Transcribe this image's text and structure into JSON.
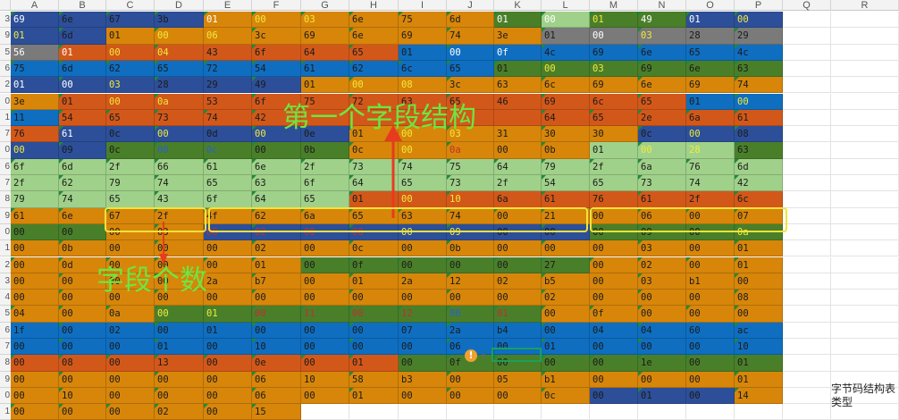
{
  "columns": [
    "A",
    "B",
    "C",
    "D",
    "E",
    "F",
    "G",
    "H",
    "I",
    "J",
    "K",
    "L",
    "M",
    "N",
    "O",
    "P",
    "Q",
    "R"
  ],
  "row_numbers": [
    "3",
    "9",
    "5",
    "6",
    "2",
    "0",
    "1",
    "7",
    "0",
    "6",
    "7",
    "8",
    "9",
    "0",
    "1",
    "2",
    "3",
    "4",
    "5",
    "6",
    "7",
    "8",
    "9",
    "0",
    "1",
    "2"
  ],
  "colors": {
    "B": "#2d4f99",
    "O": "#d7860a",
    "R": "#d2581a",
    "G": "#4a7f2a",
    "L": "#a0d18a",
    "S": "#0f6ec0",
    "Y": "#7a7a7a"
  },
  "grid_rows": [
    {
      "cells": [
        "69",
        "6e",
        "67",
        "3b",
        "01",
        "00",
        "03",
        "6e",
        "75",
        "6d",
        "01",
        "00",
        "01",
        "49",
        "01",
        "00"
      ],
      "bg": [
        "B",
        "B",
        "B",
        "B",
        "O",
        "O",
        "O",
        "O",
        "O",
        "O",
        "G",
        "L",
        "G",
        "G",
        "B",
        "B"
      ],
      "fg": [
        "w",
        "k",
        "k",
        "k",
        "w",
        "y",
        "y",
        "k",
        "k",
        "k",
        "w",
        "w",
        "y",
        "w",
        "w",
        "y"
      ]
    },
    {
      "cells": [
        "01",
        "6d",
        "01",
        "00",
        "06",
        "3c",
        "69",
        "6e",
        "69",
        "74",
        "3e",
        "01",
        "00",
        "03",
        "28",
        "29"
      ],
      "bg": [
        "B",
        "B",
        "O",
        "O",
        "O",
        "O",
        "O",
        "O",
        "O",
        "O",
        "O",
        "Y",
        "Y",
        "Y",
        "Y",
        "Y"
      ],
      "fg": [
        "y",
        "k",
        "k",
        "y",
        "y",
        "k",
        "k",
        "k",
        "k",
        "k",
        "k",
        "k",
        "w",
        "y",
        "k",
        "k"
      ]
    },
    {
      "cells": [
        "56",
        "01",
        "00",
        "04",
        "43",
        "6f",
        "64",
        "65",
        "01",
        "00",
        "0f",
        "4c",
        "69",
        "6e",
        "65",
        "4c"
      ],
      "bg": [
        "Y",
        "R",
        "R",
        "R",
        "R",
        "R",
        "R",
        "R",
        "S",
        "S",
        "S",
        "S",
        "S",
        "S",
        "S",
        "S"
      ],
      "fg": [
        "w",
        "w",
        "y",
        "y",
        "k",
        "k",
        "k",
        "k",
        "k",
        "w",
        "w",
        "k",
        "k",
        "k",
        "k",
        "k"
      ]
    },
    {
      "cells": [
        "75",
        "6d",
        "62",
        "65",
        "72",
        "54",
        "61",
        "62",
        "6c",
        "65",
        "01",
        "00",
        "03",
        "69",
        "6e",
        "63"
      ],
      "bg": [
        "S",
        "S",
        "S",
        "S",
        "S",
        "S",
        "S",
        "S",
        "S",
        "S",
        "G",
        "G",
        "G",
        "G",
        "G",
        "G"
      ],
      "fg": [
        "k",
        "k",
        "k",
        "k",
        "k",
        "k",
        "k",
        "k",
        "k",
        "k",
        "k",
        "y",
        "y",
        "k",
        "k",
        "k"
      ]
    },
    {
      "cells": [
        "01",
        "00",
        "03",
        "28",
        "29",
        "49",
        "01",
        "00",
        "08",
        "3c",
        "63",
        "6c",
        "69",
        "6e",
        "69",
        "74"
      ],
      "bg": [
        "B",
        "B",
        "B",
        "B",
        "B",
        "B",
        "O",
        "O",
        "O",
        "O",
        "O",
        "O",
        "O",
        "O",
        "O",
        "O"
      ],
      "fg": [
        "w",
        "w",
        "y",
        "k",
        "k",
        "k",
        "k",
        "y",
        "y",
        "k",
        "k",
        "k",
        "k",
        "k",
        "k",
        "k"
      ]
    },
    {
      "cells": [
        "3e",
        "01",
        "00",
        "0a",
        "53",
        "6f",
        "75",
        "72",
        "63",
        "65",
        "46",
        "69",
        "6c",
        "65",
        "01",
        "00"
      ],
      "bg": [
        "O",
        "R",
        "R",
        "R",
        "R",
        "R",
        "R",
        "R",
        "R",
        "R",
        "R",
        "R",
        "R",
        "R",
        "S",
        "S"
      ],
      "fg": [
        "k",
        "k",
        "y",
        "y",
        "k",
        "k",
        "k",
        "k",
        "k",
        "k",
        "k",
        "k",
        "k",
        "k",
        "k",
        "y"
      ]
    },
    {
      "cells": [
        "11",
        "54",
        "65",
        "73",
        "74",
        "42",
        "",
        "",
        "",
        "",
        "",
        "64",
        "65",
        "2e",
        "6a",
        "61"
      ],
      "bg": [
        "S",
        "R",
        "R",
        "R",
        "R",
        "R",
        "R",
        "R",
        "R",
        "R",
        "R",
        "R",
        "R",
        "R",
        "R",
        "R"
      ],
      "fg": [
        "k",
        "k",
        "k",
        "k",
        "k",
        "k",
        "k",
        "k",
        "k",
        "k",
        "k",
        "k",
        "k",
        "k",
        "k",
        "k"
      ]
    },
    {
      "cells": [
        "76",
        "61",
        "0c",
        "00",
        "0d",
        "00",
        "0e",
        "01",
        "00",
        "03",
        "31",
        "30",
        "30",
        "0c",
        "00",
        "08"
      ],
      "bg": [
        "R",
        "B",
        "B",
        "B",
        "B",
        "B",
        "B",
        "O",
        "O",
        "O",
        "O",
        "O",
        "O",
        "B",
        "B",
        "B"
      ],
      "fg": [
        "k",
        "w",
        "k",
        "y",
        "k",
        "y",
        "k",
        "k",
        "y",
        "y",
        "k",
        "k",
        "k",
        "k",
        "y",
        "k"
      ]
    },
    {
      "cells": [
        "00",
        "09",
        "0c",
        "00",
        "0c",
        "00",
        "0b",
        "0c",
        "00",
        "0a",
        "00",
        "0b",
        "01",
        "00",
        "28",
        "63"
      ],
      "bg": [
        "B",
        "B",
        "G",
        "G",
        "G",
        "G",
        "G",
        "O",
        "O",
        "O",
        "O",
        "O",
        "L",
        "L",
        "L",
        "G"
      ],
      "fg": [
        "y",
        "k",
        "k",
        "B",
        "B",
        "k",
        "k",
        "k",
        "y",
        "R",
        "k",
        "k",
        "k",
        "y",
        "y",
        "k"
      ]
    },
    {
      "cells": [
        "6f",
        "6d",
        "2f",
        "66",
        "61",
        "6e",
        "2f",
        "73",
        "74",
        "75",
        "64",
        "79",
        "2f",
        "6a",
        "76",
        "6d"
      ],
      "bg": [
        "L",
        "L",
        "L",
        "L",
        "L",
        "L",
        "L",
        "L",
        "L",
        "L",
        "L",
        "L",
        "L",
        "L",
        "L",
        "L"
      ],
      "fg": [
        "k",
        "k",
        "k",
        "k",
        "k",
        "k",
        "k",
        "k",
        "k",
        "k",
        "k",
        "k",
        "k",
        "k",
        "k",
        "k"
      ]
    },
    {
      "cells": [
        "2f",
        "62",
        "79",
        "74",
        "65",
        "63",
        "6f",
        "64",
        "65",
        "73",
        "2f",
        "54",
        "65",
        "73",
        "74",
        "42"
      ],
      "bg": [
        "L",
        "L",
        "L",
        "L",
        "L",
        "L",
        "L",
        "L",
        "L",
        "L",
        "L",
        "L",
        "L",
        "L",
        "L",
        "L"
      ],
      "fg": [
        "k",
        "k",
        "k",
        "k",
        "k",
        "k",
        "k",
        "k",
        "k",
        "k",
        "k",
        "k",
        "k",
        "k",
        "k",
        "k"
      ]
    },
    {
      "cells": [
        "79",
        "74",
        "65",
        "43",
        "6f",
        "64",
        "65",
        "01",
        "00",
        "10",
        "6a",
        "61",
        "76",
        "61",
        "2f",
        "6c"
      ],
      "bg": [
        "L",
        "L",
        "L",
        "L",
        "L",
        "L",
        "L",
        "R",
        "R",
        "R",
        "R",
        "R",
        "R",
        "R",
        "R",
        "R"
      ],
      "fg": [
        "k",
        "k",
        "k",
        "k",
        "k",
        "k",
        "k",
        "k",
        "y",
        "y",
        "k",
        "k",
        "k",
        "k",
        "k",
        "k"
      ]
    },
    {
      "cells": [
        "61",
        "6e",
        "67",
        "2f",
        "4f",
        "62",
        "6a",
        "65",
        "63",
        "74",
        "00",
        "21",
        "00",
        "06",
        "00",
        "07"
      ],
      "bg": [
        "O",
        "O",
        "O",
        "O",
        "O",
        "O",
        "O",
        "O",
        "O",
        "O",
        "O",
        "O",
        "O",
        "O",
        "O",
        "O"
      ],
      "fg": [
        "k",
        "k",
        "k",
        "k",
        "k",
        "k",
        "k",
        "k",
        "k",
        "k",
        "k",
        "k",
        "k",
        "k",
        "k",
        "k"
      ]
    },
    {
      "cells": [
        "00",
        "00",
        "00",
        "03",
        "00",
        "02",
        "00",
        "08",
        "00",
        "09",
        "00",
        "00",
        "00",
        "09",
        "00",
        "0a"
      ],
      "bg": [
        "G",
        "G",
        "O",
        "O",
        "B",
        "B",
        "B",
        "B",
        "B",
        "B",
        "B",
        "B",
        "G",
        "G",
        "G",
        "G"
      ],
      "fg": [
        "k",
        "k",
        "k",
        "k",
        "R",
        "R",
        "R",
        "R",
        "y",
        "y",
        "k",
        "k",
        "k",
        "k",
        "k",
        "y"
      ]
    },
    {
      "cells": [
        "00",
        "0b",
        "00",
        "00",
        "00",
        "02",
        "00",
        "0c",
        "00",
        "0b",
        "00",
        "00",
        "00",
        "03",
        "00",
        "01"
      ],
      "bg": [
        "O",
        "O",
        "O",
        "O",
        "O",
        "O",
        "O",
        "O",
        "O",
        "O",
        "O",
        "O",
        "O",
        "O",
        "O",
        "O"
      ],
      "fg": [
        "k",
        "k",
        "k",
        "k",
        "k",
        "k",
        "k",
        "k",
        "k",
        "k",
        "k",
        "k",
        "k",
        "k",
        "k",
        "k"
      ]
    },
    {
      "cells": [
        "00",
        "0d",
        "00",
        "00",
        "00",
        "01",
        "00",
        "0f",
        "00",
        "00",
        "00",
        "27",
        "00",
        "02",
        "00",
        "01"
      ],
      "bg": [
        "O",
        "O",
        "O",
        "O",
        "O",
        "O",
        "G",
        "G",
        "G",
        "G",
        "G",
        "G",
        "O",
        "O",
        "O",
        "O"
      ],
      "fg": [
        "k",
        "k",
        "k",
        "k",
        "k",
        "k",
        "k",
        "k",
        "k",
        "k",
        "k",
        "k",
        "k",
        "k",
        "k",
        "k"
      ]
    },
    {
      "cells": [
        "00",
        "00",
        "00",
        "00",
        "2a",
        "b7",
        "00",
        "01",
        "2a",
        "12",
        "02",
        "b5",
        "00",
        "03",
        "b1",
        "00"
      ],
      "bg": [
        "O",
        "O",
        "O",
        "O",
        "O",
        "O",
        "O",
        "O",
        "O",
        "O",
        "O",
        "O",
        "O",
        "O",
        "O",
        "O"
      ],
      "fg": [
        "k",
        "k",
        "k",
        "k",
        "k",
        "k",
        "k",
        "k",
        "k",
        "k",
        "k",
        "k",
        "k",
        "k",
        "k",
        "k"
      ]
    },
    {
      "cells": [
        "00",
        "00",
        "00",
        "00",
        "00",
        "00",
        "00",
        "00",
        "00",
        "00",
        "00",
        "02",
        "00",
        "00",
        "00",
        "08"
      ],
      "bg": [
        "O",
        "O",
        "O",
        "O",
        "O",
        "O",
        "O",
        "O",
        "O",
        "O",
        "O",
        "O",
        "O",
        "O",
        "O",
        "O"
      ],
      "fg": [
        "k",
        "k",
        "k",
        "k",
        "k",
        "k",
        "k",
        "k",
        "k",
        "k",
        "k",
        "k",
        "k",
        "k",
        "k",
        "k"
      ]
    },
    {
      "cells": [
        "04",
        "00",
        "0a",
        "00",
        "01",
        "00",
        "11",
        "00",
        "12",
        "00",
        "01",
        "00",
        "0f",
        "00",
        "00",
        "00"
      ],
      "bg": [
        "O",
        "O",
        "O",
        "G",
        "G",
        "G",
        "G",
        "G",
        "G",
        "G",
        "G",
        "O",
        "O",
        "O",
        "O",
        "O"
      ],
      "fg": [
        "k",
        "k",
        "k",
        "y",
        "y",
        "R",
        "R",
        "R",
        "R",
        "B",
        "R",
        "k",
        "k",
        "k",
        "k",
        "k"
      ]
    },
    {
      "cells": [
        "1f",
        "00",
        "02",
        "00",
        "01",
        "00",
        "00",
        "00",
        "07",
        "2a",
        "b4",
        "00",
        "04",
        "04",
        "60",
        "ac"
      ],
      "bg": [
        "S",
        "S",
        "S",
        "S",
        "S",
        "S",
        "S",
        "S",
        "S",
        "S",
        "S",
        "S",
        "S",
        "S",
        "S",
        "S"
      ],
      "fg": [
        "k",
        "k",
        "k",
        "k",
        "k",
        "k",
        "k",
        "k",
        "k",
        "k",
        "k",
        "k",
        "k",
        "k",
        "k",
        "k"
      ]
    },
    {
      "cells": [
        "00",
        "00",
        "00",
        "01",
        "00",
        "10",
        "00",
        "00",
        "00",
        "06",
        "00",
        "01",
        "00",
        "00",
        "00",
        "10"
      ],
      "bg": [
        "S",
        "S",
        "S",
        "S",
        "S",
        "S",
        "S",
        "S",
        "S",
        "S",
        "S",
        "S",
        "S",
        "S",
        "S",
        "S"
      ],
      "fg": [
        "k",
        "k",
        "k",
        "k",
        "k",
        "k",
        "k",
        "k",
        "k",
        "k",
        "k",
        "k",
        "k",
        "k",
        "k",
        "k"
      ]
    },
    {
      "cells": [
        "00",
        "08",
        "00",
        "13",
        "00",
        "0e",
        "00",
        "01",
        "00",
        "0f",
        "00",
        "00",
        "00",
        "1e",
        "00",
        "01"
      ],
      "bg": [
        "R",
        "R",
        "R",
        "R",
        "R",
        "R",
        "R",
        "R",
        "G",
        "G",
        "G",
        "G",
        "G",
        "G",
        "G",
        "G"
      ],
      "fg": [
        "k",
        "k",
        "k",
        "k",
        "k",
        "k",
        "k",
        "k",
        "k",
        "k",
        "k",
        "k",
        "k",
        "k",
        "k",
        "k"
      ]
    },
    {
      "cells": [
        "00",
        "00",
        "00",
        "00",
        "00",
        "06",
        "10",
        "58",
        "b3",
        "00",
        "05",
        "b1",
        "00",
        "00",
        "00",
        "01"
      ],
      "bg": [
        "O",
        "O",
        "O",
        "O",
        "O",
        "O",
        "O",
        "O",
        "O",
        "O",
        "O",
        "O",
        "O",
        "O",
        "O",
        "O"
      ],
      "fg": [
        "k",
        "k",
        "k",
        "k",
        "k",
        "k",
        "k",
        "k",
        "k",
        "k",
        "k",
        "k",
        "k",
        "k",
        "k",
        "k"
      ]
    },
    {
      "cells": [
        "00",
        "10",
        "00",
        "00",
        "00",
        "06",
        "00",
        "01",
        "00",
        "00",
        "00",
        "0c",
        "00",
        "01",
        "00",
        "14"
      ],
      "bg": [
        "O",
        "O",
        "O",
        "O",
        "O",
        "O",
        "O",
        "O",
        "O",
        "O",
        "O",
        "O",
        "B",
        "B",
        "B",
        "O"
      ],
      "fg": [
        "k",
        "k",
        "k",
        "k",
        "k",
        "k",
        "k",
        "k",
        "k",
        "k",
        "k",
        "k",
        "k",
        "k",
        "k",
        "k"
      ]
    },
    {
      "cells": [
        "00",
        "00",
        "00",
        "02",
        "00",
        "15",
        "",
        "",
        "",
        "",
        "",
        "",
        "",
        "",
        "",
        ""
      ],
      "bg": [
        "O",
        "O",
        "O",
        "O",
        "O",
        "O",
        "",
        "",
        "",
        "",
        "",
        "",
        "",
        "",
        "",
        ""
      ],
      "fg": [
        "k",
        "k",
        "k",
        "k",
        "k",
        "k",
        "k",
        "k",
        "k",
        "k",
        "k",
        "k",
        "k",
        "k",
        "k",
        "k"
      ]
    }
  ],
  "overlay": {
    "first_field_structure": "第一个字段结构",
    "field_count": "字段个数"
  },
  "side_notes": {
    "line1": "字节码结构表",
    "line2": "类型"
  },
  "active_cell_value": "05"
}
